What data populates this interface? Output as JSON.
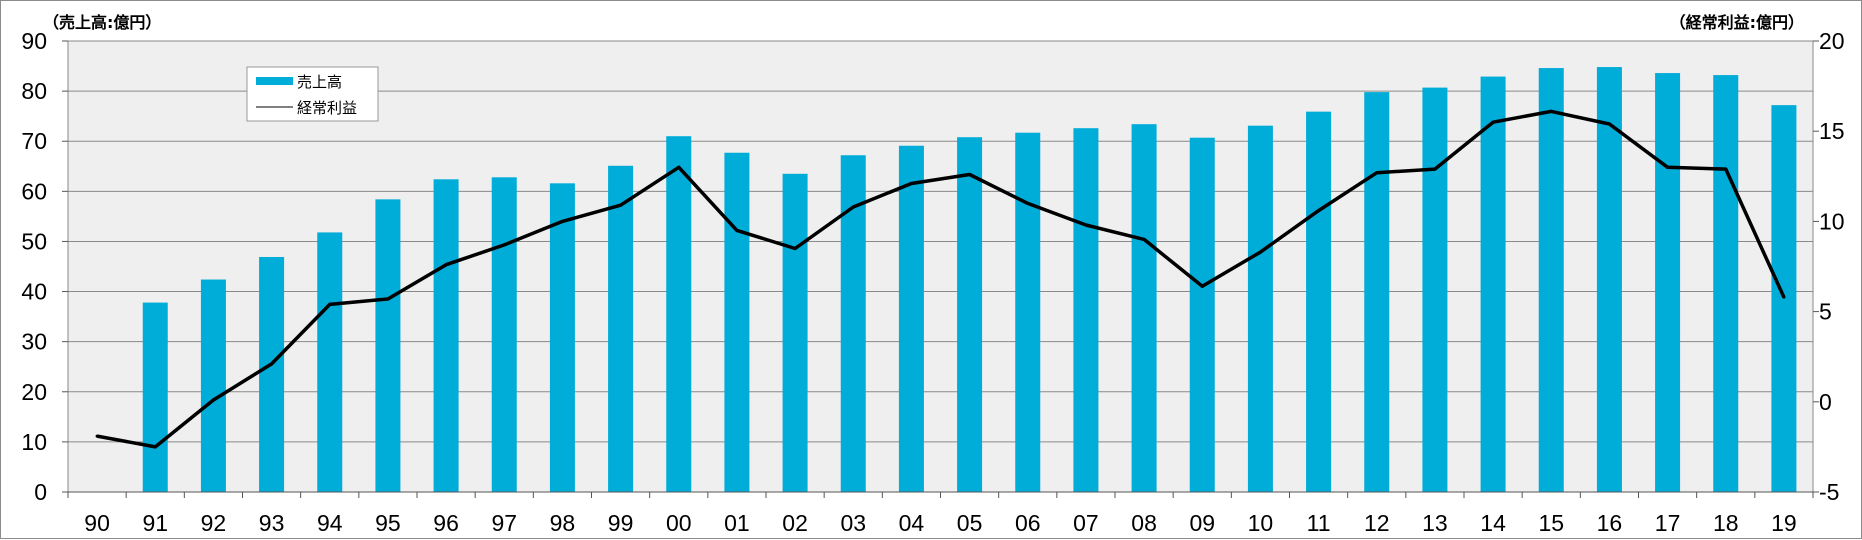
{
  "chart_data": {
    "type": "bar",
    "left_unit_label": "（売上高:億円）",
    "right_unit_label": "（経常利益:億円）",
    "categories": [
      "90",
      "91",
      "92",
      "93",
      "94",
      "95",
      "96",
      "97",
      "98",
      "99",
      "00",
      "01",
      "02",
      "03",
      "04",
      "05",
      "06",
      "07",
      "08",
      "09",
      "10",
      "11",
      "12",
      "13",
      "14",
      "15",
      "16",
      "17",
      "18",
      "19"
    ],
    "series": [
      {
        "name": "売上高",
        "type": "bar",
        "axis": "left",
        "color": "#00acd8",
        "values": [
          null,
          37.8,
          42.4,
          46.9,
          51.8,
          58.4,
          62.4,
          62.8,
          61.6,
          65.1,
          71.0,
          67.7,
          63.5,
          67.2,
          69.1,
          70.8,
          71.7,
          72.6,
          73.4,
          70.7,
          73.1,
          75.9,
          79.8,
          80.7,
          82.9,
          84.6,
          84.8,
          83.6,
          83.2,
          77.2
        ]
      },
      {
        "name": "経常利益",
        "type": "line",
        "axis": "right",
        "color": "#000000",
        "values": [
          -1.9,
          -2.5,
          0.1,
          2.1,
          5.4,
          5.7,
          7.6,
          8.7,
          10.0,
          10.9,
          13.0,
          9.5,
          8.5,
          10.8,
          12.1,
          12.6,
          11.0,
          9.8,
          9.0,
          6.4,
          8.3,
          10.6,
          12.7,
          12.9,
          15.5,
          16.1,
          15.4,
          13.0,
          12.9,
          5.8
        ]
      }
    ],
    "y_left": {
      "min": 0,
      "max": 90,
      "ticks": [
        "0",
        "10",
        "20",
        "30",
        "40",
        "50",
        "60",
        "70",
        "80",
        "90"
      ]
    },
    "y_right": {
      "min": -5,
      "max": 20,
      "ticks": [
        "-5",
        "0",
        "5",
        "10",
        "15",
        "20"
      ],
      "negative_color": "#ff0000"
    },
    "grid": true,
    "legend": {
      "position": "top-left",
      "entries": [
        "売上高",
        "経常利益"
      ]
    },
    "plot_background": "#efefef"
  }
}
